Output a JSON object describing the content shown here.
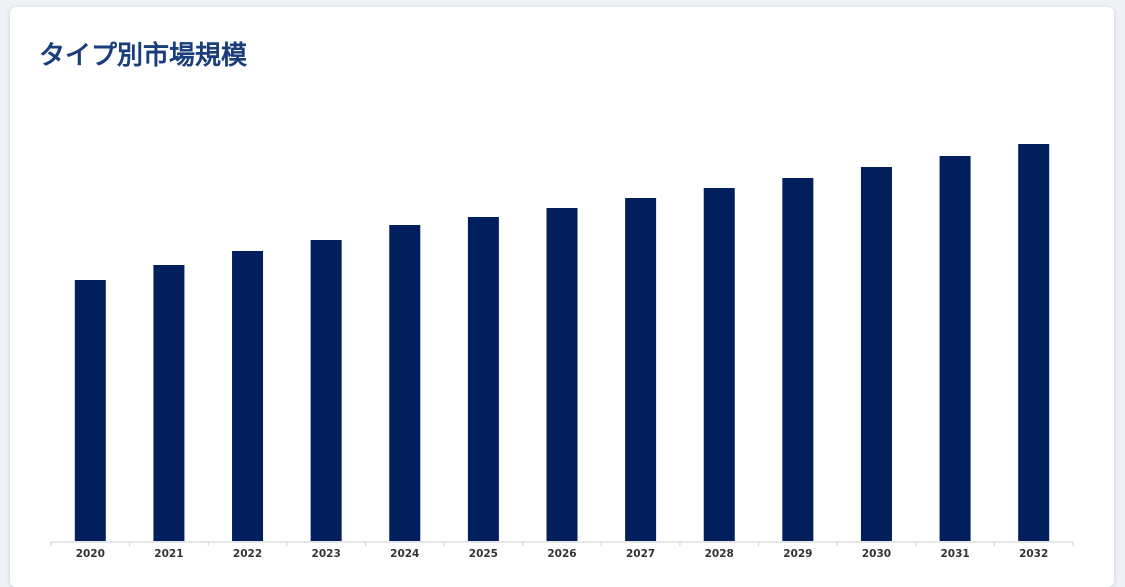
{
  "chart_data": {
    "type": "bar",
    "title": "タイプ別市場規模",
    "categories": [
      "2020",
      "2021",
      "2022",
      "2023",
      "2024",
      "2025",
      "2026",
      "2027",
      "2028",
      "2029",
      "2030",
      "2031",
      "2032"
    ],
    "values": [
      261,
      276,
      290,
      301,
      316,
      324,
      333,
      343,
      353,
      363,
      374,
      385,
      397
    ],
    "color": "#001f5c",
    "ylim": [
      0,
      400
    ],
    "grid": false
  }
}
